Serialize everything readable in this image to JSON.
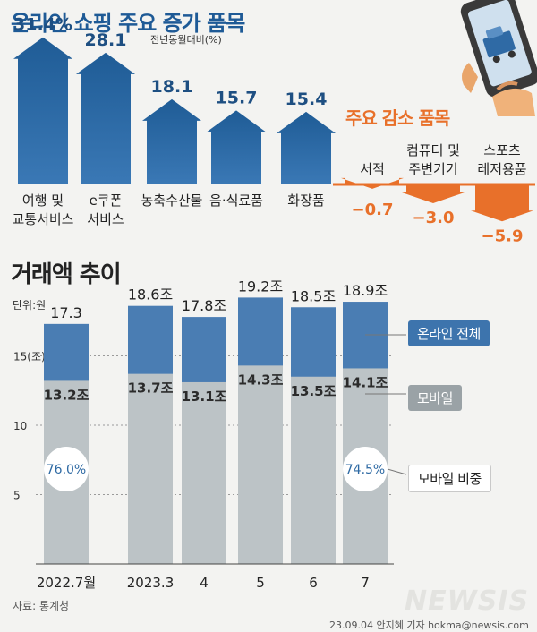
{
  "chart_data": [
    {
      "type": "bar",
      "title": "온라인 쇼핑 주요 증가 품목",
      "unit_note": "전년동월대비(%)",
      "categories": [
        [
          "여행 및",
          "교통서비스"
        ],
        [
          "e쿠폰",
          "서비스"
        ],
        [
          "농축수산물"
        ],
        [
          "음·식료품"
        ],
        [
          "화장품"
        ]
      ],
      "value_labels": [
        "31.4%",
        "28.1",
        "18.1",
        "15.7",
        "15.4"
      ],
      "values": [
        31.4,
        28.1,
        18.1,
        15.7,
        15.4
      ]
    },
    {
      "type": "bar",
      "title": "주요 감소 품목",
      "categories": [
        [
          "서적"
        ],
        [
          "컴퓨터 및",
          "주변기기"
        ],
        [
          "스포츠",
          "레저용품"
        ]
      ],
      "value_labels": [
        "−0.7",
        "−3.0",
        "−5.9"
      ],
      "values": [
        -0.7,
        -3.0,
        -5.9
      ]
    },
    {
      "type": "bar",
      "title": "거래액 추이",
      "unit_note": "단위:원",
      "categories": [
        "2022.7월",
        "2023.3",
        "4",
        "5",
        "6",
        "7"
      ],
      "ylim": [
        0,
        20
      ],
      "ytick_labels": [
        "15(조)",
        "10",
        "5"
      ],
      "ytick_values": [
        15,
        10,
        5
      ],
      "grid": true,
      "series": [
        {
          "name": "온라인 전체",
          "values": [
            17.3,
            18.6,
            17.8,
            19.2,
            18.5,
            18.9
          ],
          "labels": [
            "17.3",
            "18.6조",
            "17.8조",
            "19.2조",
            "18.5조",
            "18.9조"
          ]
        },
        {
          "name": "모바일",
          "values": [
            13.2,
            13.7,
            13.1,
            14.3,
            13.5,
            14.1
          ],
          "labels": [
            "13.2조",
            "13.7조",
            "13.1조",
            "14.3조",
            "13.5조",
            "14.1조"
          ]
        }
      ],
      "share_labels": [
        {
          "category": "2022.7월",
          "label": "76.0%"
        },
        {
          "category": "7",
          "label": "74.5%"
        }
      ],
      "share_legend": "모바일 비중"
    }
  ],
  "colors": {
    "increase_bar": "#1f5c96",
    "increase_bar_light": "#3a78b5",
    "decrease": "#e8702a",
    "total_bar": "#4a7db3",
    "mobile_bar": "#bcc3c6",
    "share_circle": "#ffffff",
    "share_text": "#2d69a3",
    "mobile_legend": "#9aa2a6"
  },
  "footer": {
    "source": "자료: 통계청",
    "credit": "23.09.04 안지혜 기자 hokma@newsis.com",
    "brand": "NEWSIS"
  },
  "icons": {
    "phone": "smartphone-shopping-icon"
  }
}
